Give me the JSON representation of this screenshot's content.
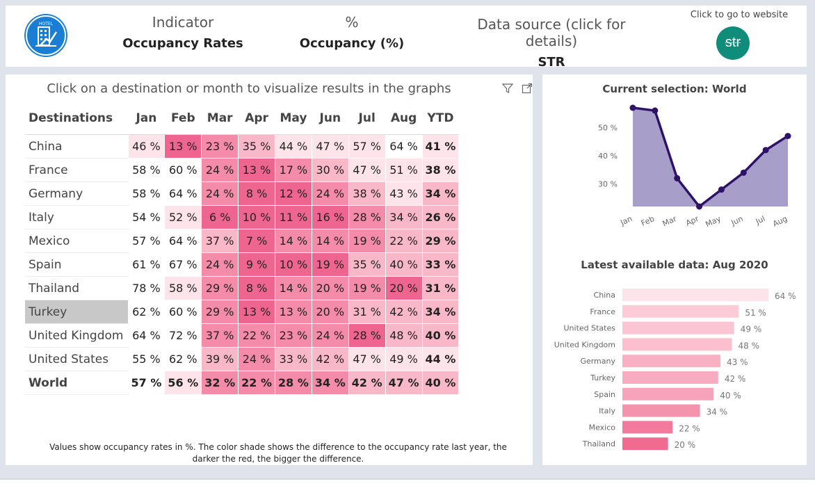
{
  "header": {
    "indicator_label": "Indicator",
    "indicator_value": "Occupancy Rates",
    "unit_label": "%",
    "unit_value": "Occupancy (%)",
    "source_label": "Data source (click for details)",
    "source_value": "STR",
    "website_label": "Click to go to website",
    "str_logo_text": "str",
    "hotel_logo_text": "HOTEL"
  },
  "matrix": {
    "instruction": "Click on a destination or month to visualize results in the graphs",
    "destinations_header": "Destinations",
    "columns": [
      "Jan",
      "Feb",
      "Mar",
      "Apr",
      "May",
      "Jun",
      "Jul",
      "Aug",
      "YTD"
    ],
    "rows": [
      {
        "name": "China",
        "values": [
          "46 %",
          "13 %",
          "23 %",
          "35 %",
          "44 %",
          "47 %",
          "57 %",
          "64 %",
          "41 %"
        ],
        "shades": [
          1,
          4,
          3,
          2,
          1,
          1,
          1,
          0,
          1
        ]
      },
      {
        "name": "France",
        "values": [
          "58 %",
          "60 %",
          "24 %",
          "13 %",
          "17 %",
          "30 %",
          "47 %",
          "51 %",
          "38 %"
        ],
        "shades": [
          0,
          0,
          3,
          4,
          3,
          2,
          1,
          1,
          1
        ]
      },
      {
        "name": "Germany",
        "values": [
          "58 %",
          "64 %",
          "24 %",
          "8 %",
          "12 %",
          "24 %",
          "38 %",
          "43 %",
          "34 %"
        ],
        "shades": [
          0,
          0,
          3,
          4,
          4,
          3,
          2,
          1,
          2
        ]
      },
      {
        "name": "Italy",
        "values": [
          "54 %",
          "52 %",
          "6 %",
          "10 %",
          "11 %",
          "16 %",
          "28 %",
          "34 %",
          "26 %"
        ],
        "shades": [
          0,
          1,
          4,
          4,
          4,
          4,
          3,
          2,
          2
        ]
      },
      {
        "name": "Mexico",
        "values": [
          "57 %",
          "64 %",
          "37 %",
          "7 %",
          "14 %",
          "14 %",
          "19 %",
          "22 %",
          "29 %"
        ],
        "shades": [
          0,
          0,
          2,
          4,
          3,
          3,
          3,
          2,
          2
        ]
      },
      {
        "name": "Spain",
        "values": [
          "61 %",
          "67 %",
          "24 %",
          "9 %",
          "10 %",
          "19 %",
          "35 %",
          "40 %",
          "33 %"
        ],
        "shades": [
          0,
          0,
          3,
          4,
          4,
          4,
          2,
          2,
          2
        ]
      },
      {
        "name": "Thailand",
        "values": [
          "78 %",
          "58 %",
          "29 %",
          "8 %",
          "14 %",
          "20 %",
          "19 %",
          "20 %",
          "31 %"
        ],
        "shades": [
          0,
          1,
          3,
          4,
          3,
          3,
          3,
          4,
          2
        ]
      },
      {
        "name": "Turkey",
        "values": [
          "62 %",
          "60 %",
          "29 %",
          "13 %",
          "13 %",
          "20 %",
          "31 %",
          "42 %",
          "34 %"
        ],
        "shades": [
          0,
          0,
          3,
          4,
          3,
          3,
          2,
          2,
          2
        ]
      },
      {
        "name": "United Kingdom",
        "values": [
          "64 %",
          "72 %",
          "37 %",
          "22 %",
          "23 %",
          "24 %",
          "28 %",
          "48 %",
          "40 %"
        ],
        "shades": [
          0,
          0,
          3,
          3,
          3,
          3,
          4,
          2,
          2
        ]
      },
      {
        "name": "United States",
        "values": [
          "55 %",
          "62 %",
          "39 %",
          "24 %",
          "33 %",
          "42 %",
          "47 %",
          "49 %",
          "44 %"
        ],
        "shades": [
          0,
          0,
          2,
          3,
          2,
          2,
          1,
          1,
          1
        ]
      },
      {
        "name": "World",
        "values": [
          "57 %",
          "56 %",
          "32 %",
          "22 %",
          "28 %",
          "34 %",
          "42 %",
          "47 %",
          "40 %"
        ],
        "shades": [
          0,
          1,
          3,
          3,
          3,
          3,
          2,
          2,
          2
        ]
      }
    ],
    "selected_row": "Turkey",
    "shade_colors": [
      "#ffffff",
      "#fde4ea",
      "#f9b8c8",
      "#f48ba8",
      "#ee6690"
    ],
    "footnote_line1": "Values show occupancy rates in %. The color shade shows the difference to the occupancy rate last year, the",
    "footnote_line2": "darker the red, the bigger the difference."
  },
  "chart_data": [
    {
      "type": "area",
      "title": "Current selection: World",
      "categories": [
        "Jan",
        "Feb",
        "Mar",
        "Apr",
        "May",
        "Jun",
        "Jul",
        "Aug"
      ],
      "values": [
        57,
        56,
        32,
        22,
        28,
        34,
        42,
        47
      ],
      "ylim": [
        22,
        57
      ],
      "yticks": [
        30,
        40,
        50
      ],
      "ytick_labels": [
        "30 %",
        "40 %",
        "50 %"
      ],
      "fill_color": "#a79fc9",
      "line_color": "#2e1168"
    },
    {
      "type": "bar",
      "orientation": "horizontal",
      "title": "Latest available data: Aug 2020",
      "categories": [
        "China",
        "France",
        "United States",
        "United Kingdom",
        "Germany",
        "Turkey",
        "Spain",
        "Italy",
        "Mexico",
        "Thailand"
      ],
      "values": [
        64,
        51,
        49,
        48,
        43,
        42,
        40,
        34,
        22,
        20
      ],
      "labels": [
        "64 %",
        "51 %",
        "49 %",
        "48 %",
        "43 %",
        "42 %",
        "40 %",
        "34 %",
        "22 %",
        "20 %"
      ],
      "colors": [
        "#fde4ea",
        "#fccbd7",
        "#fbc5d2",
        "#fbbfcd",
        "#f9b0c3",
        "#f8acc0",
        "#f7a4ba",
        "#f493ae",
        "#f27a9d",
        "#f06a92"
      ],
      "xlim": [
        0,
        64
      ]
    }
  ]
}
